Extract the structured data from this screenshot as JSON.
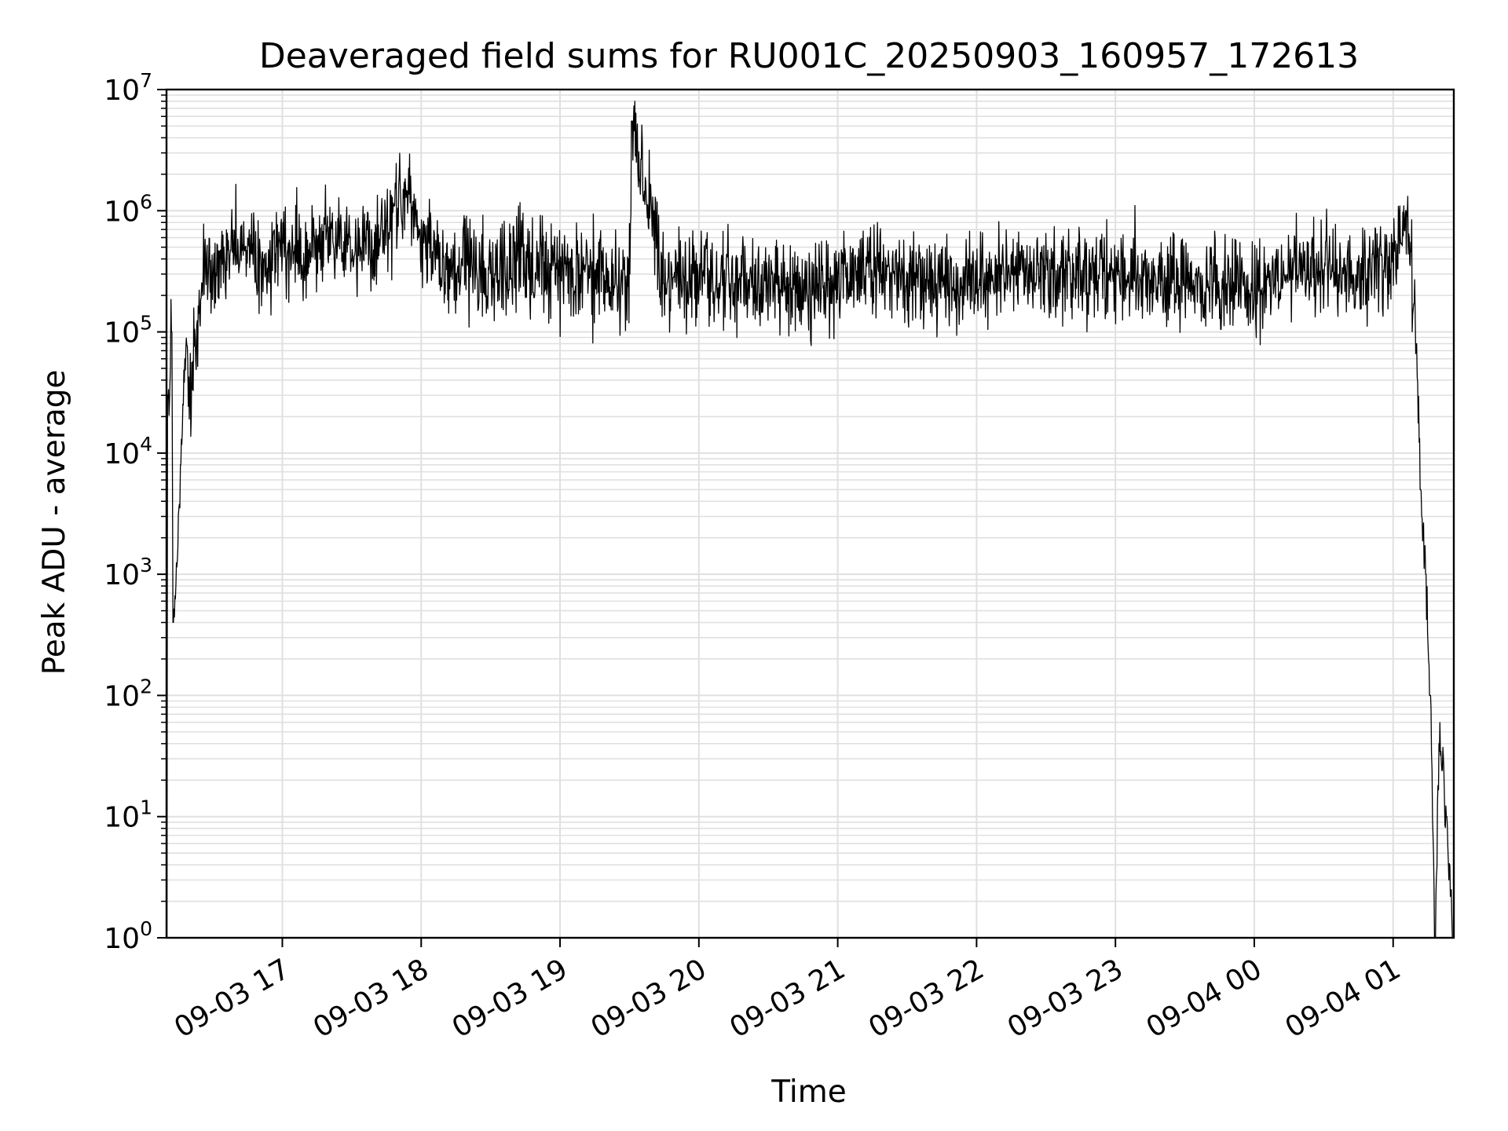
{
  "chart_data": {
    "type": "line",
    "title": "Deaveraged field sums for RU001C_20250903_160957_172613",
    "xlabel": "Time",
    "ylabel": "Peak ADU - average",
    "yscale": "log",
    "ylim": [
      1,
      10000000
    ],
    "xlim": [
      "2025-09-03 16:09:57",
      "2025-09-04 01:26:13"
    ],
    "grid": true,
    "line_color": "#000000",
    "grid_color": "#e0e0e0",
    "y_ticks": [
      {
        "value": 1,
        "base": "10",
        "exp": "0"
      },
      {
        "value": 10,
        "base": "10",
        "exp": "1"
      },
      {
        "value": 100,
        "base": "10",
        "exp": "2"
      },
      {
        "value": 1000,
        "base": "10",
        "exp": "3"
      },
      {
        "value": 10000,
        "base": "10",
        "exp": "4"
      },
      {
        "value": 100000,
        "base": "10",
        "exp": "5"
      },
      {
        "value": 1000000,
        "base": "10",
        "exp": "6"
      },
      {
        "value": 10000000,
        "base": "10",
        "exp": "7"
      }
    ],
    "x_ticks": [
      {
        "value": "2025-09-03 17:00",
        "label": "09-03 17"
      },
      {
        "value": "2025-09-03 18:00",
        "label": "09-03 18"
      },
      {
        "value": "2025-09-03 19:00",
        "label": "09-03 19"
      },
      {
        "value": "2025-09-03 20:00",
        "label": "09-03 20"
      },
      {
        "value": "2025-09-03 21:00",
        "label": "09-03 21"
      },
      {
        "value": "2025-09-03 22:00",
        "label": "09-03 22"
      },
      {
        "value": "2025-09-03 23:00",
        "label": "09-03 23"
      },
      {
        "value": "2025-09-04 00:00",
        "label": "09-04 00"
      },
      {
        "value": "2025-09-04 01:00",
        "label": "09-04 01"
      }
    ],
    "series": [
      {
        "x": [
          "2025-09-03 16:09:57",
          "2025-09-03 16:10:30",
          "2025-09-03 16:11:00",
          "2025-09-03 16:12:00",
          "2025-09-03 16:13:00",
          "2025-09-03 16:14:30",
          "2025-09-03 16:16:00",
          "2025-09-03 16:18:00",
          "2025-09-03 16:20:00",
          "2025-09-03 16:23:00",
          "2025-09-03 16:26:00",
          "2025-09-03 16:30:00",
          "2025-09-03 16:35:00",
          "2025-09-03 16:40:00",
          "2025-09-03 16:45:00",
          "2025-09-03 16:50:00",
          "2025-09-03 16:55:00",
          "2025-09-03 17:00:00",
          "2025-09-03 17:10:00",
          "2025-09-03 17:20:00",
          "2025-09-03 17:30:00",
          "2025-09-03 17:40:00",
          "2025-09-03 17:50:00",
          "2025-09-03 17:55:00",
          "2025-09-03 18:00:00",
          "2025-09-03 18:10:00",
          "2025-09-03 18:20:00",
          "2025-09-03 18:30:00",
          "2025-09-03 18:40:00",
          "2025-09-03 18:50:00",
          "2025-09-03 19:00:00",
          "2025-09-03 19:15:00",
          "2025-09-03 19:30:00",
          "2025-09-03 19:31:00",
          "2025-09-03 19:45:00",
          "2025-09-03 20:00:00",
          "2025-09-03 20:15:00",
          "2025-09-03 20:30:00",
          "2025-09-03 20:45:00",
          "2025-09-03 21:00:00",
          "2025-09-03 21:15:00",
          "2025-09-03 21:30:00",
          "2025-09-03 21:45:00",
          "2025-09-03 22:00:00",
          "2025-09-03 22:15:00",
          "2025-09-03 22:30:00",
          "2025-09-03 22:45:00",
          "2025-09-03 23:00:00",
          "2025-09-03 23:15:00",
          "2025-09-03 23:30:00",
          "2025-09-03 23:45:00",
          "2025-09-04 00:00:00",
          "2025-09-04 00:15:00",
          "2025-09-04 00:30:00",
          "2025-09-04 00:45:00",
          "2025-09-04 01:00:00",
          "2025-09-04 01:03:00",
          "2025-09-04 01:06:00",
          "2025-09-04 01:08:00",
          "2025-09-04 01:10:00",
          "2025-09-04 01:12:00",
          "2025-09-04 01:14:00",
          "2025-09-04 01:16:00",
          "2025-09-04 01:18:00",
          "2025-09-04 01:20:00",
          "2025-09-04 01:23:00",
          "2025-09-04 01:26:00"
        ],
        "y": [
          1,
          30000,
          18000,
          100000,
          400,
          1100,
          8000,
          60000,
          30000,
          100000,
          350000,
          300000,
          400000,
          500000,
          450000,
          350000,
          450000,
          500000,
          450000,
          550000,
          500000,
          450000,
          1000000,
          1500000,
          700000,
          350000,
          400000,
          300000,
          400000,
          350000,
          300000,
          280000,
          300000,
          5500000,
          250000,
          280000,
          250000,
          220000,
          200000,
          280000,
          350000,
          300000,
          250000,
          300000,
          280000,
          300000,
          320000,
          280000,
          280000,
          260000,
          240000,
          220000,
          300000,
          350000,
          320000,
          400000,
          600000,
          800000,
          400000,
          80000,
          5000,
          1000,
          100,
          1,
          40,
          10,
          1
        ]
      }
    ]
  }
}
